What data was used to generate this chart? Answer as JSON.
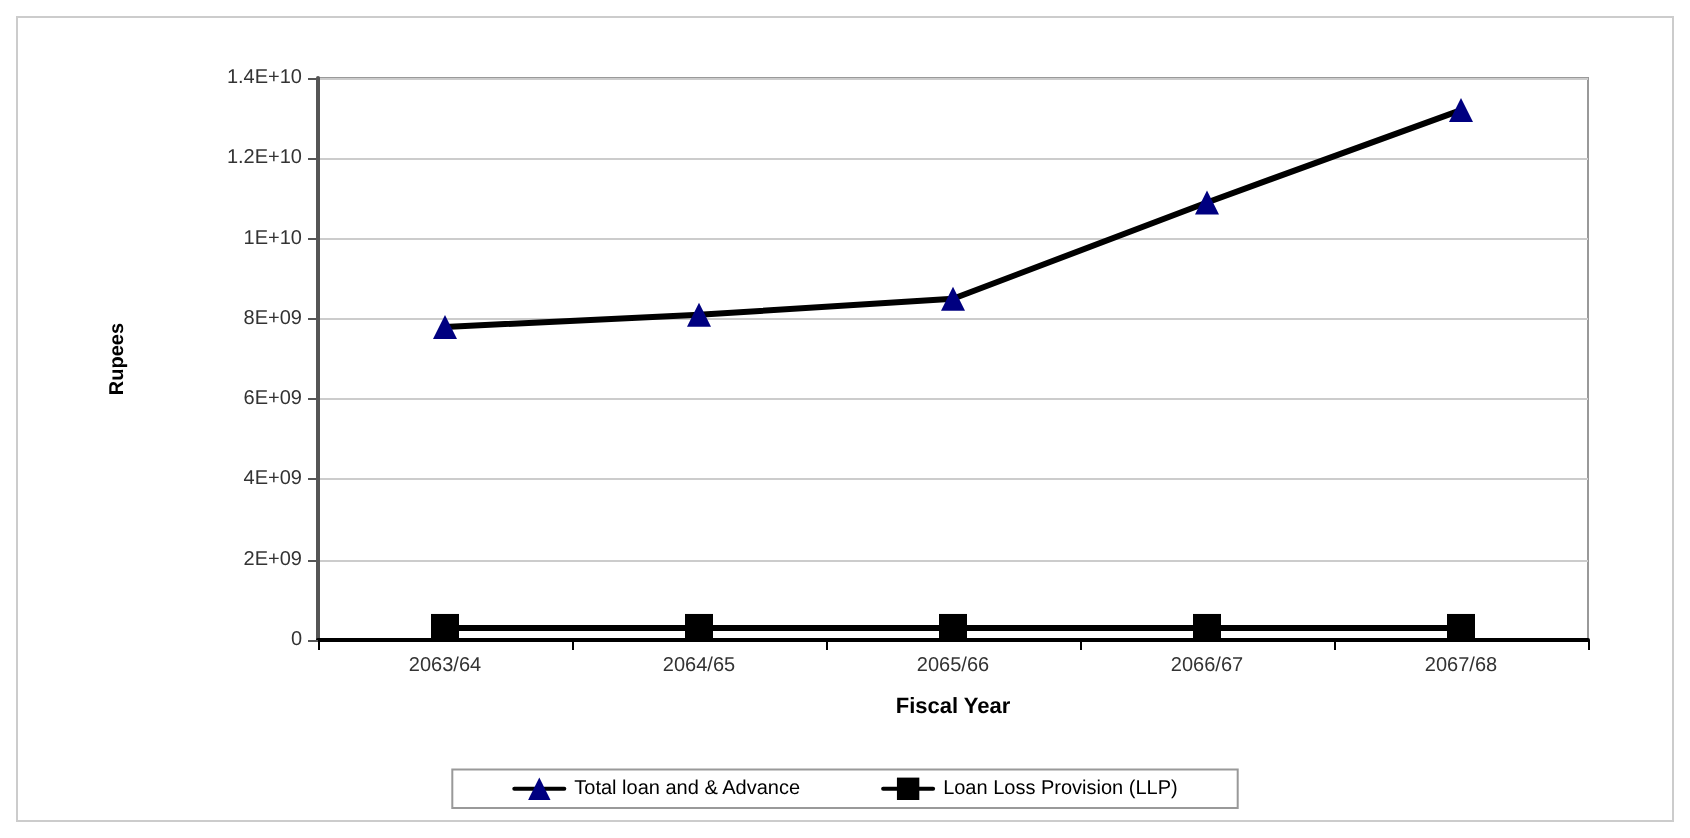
{
  "chart_data": {
    "type": "line",
    "xlabel": "Fiscal Year",
    "ylabel": "Rupees",
    "categories": [
      "2063/64",
      "2064/65",
      "2065/66",
      "2066/67",
      "2067/68"
    ],
    "series": [
      {
        "name": "Total loan and & Advance",
        "color": "#000080",
        "marker": "triangle",
        "values": [
          7800000000,
          8100000000,
          8500000000,
          10900000000,
          13200000000
        ]
      },
      {
        "name": "Loan Loss Provision (LLP)",
        "color": "#000000",
        "marker": "square",
        "values": [
          300000000,
          300000000,
          300000000,
          300000000,
          300000000
        ]
      }
    ],
    "ylim": [
      0,
      14000000000
    ],
    "yticks": [
      0,
      {
        "value": 2000000000,
        "label": "2E+09"
      },
      {
        "value": 4000000000,
        "label": "4E+09"
      },
      {
        "value": 6000000000,
        "label": "6E+09"
      },
      {
        "value": 8000000000,
        "label": "8E+09"
      },
      {
        "value": 10000000000,
        "label": "1E+10"
      },
      {
        "value": 12000000000,
        "label": "1.2E+10"
      },
      {
        "value": 14000000000,
        "label": "1.4E+10"
      }
    ],
    "grid": "y",
    "legend": "bottom"
  }
}
